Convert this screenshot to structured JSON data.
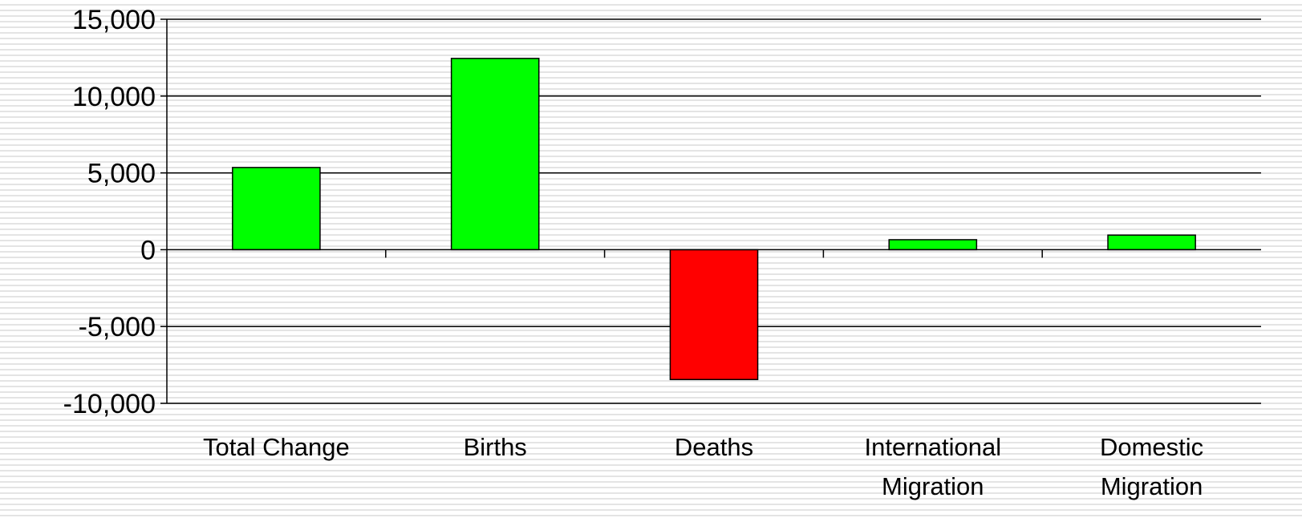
{
  "chart_data": {
    "type": "bar",
    "title": "",
    "xlabel": "",
    "ylabel": "",
    "categories": [
      "Total Change",
      "Births",
      "Deaths",
      "International Migration",
      "Domestic Migration"
    ],
    "category_label_lines": [
      [
        "Total Change"
      ],
      [
        "Births"
      ],
      [
        "Deaths"
      ],
      [
        "International",
        "Migration"
      ],
      [
        "Domestic",
        "Migration"
      ]
    ],
    "values": [
      5350,
      12450,
      -8450,
      650,
      950
    ],
    "ylim": [
      -10000,
      15000
    ],
    "yticks": [
      15000,
      10000,
      5000,
      0,
      -5000,
      -10000
    ],
    "ytick_labels": [
      "15,000",
      "10,000",
      "5,000",
      "0",
      "-5,000",
      "-10,000"
    ],
    "grid": true,
    "legend": "none",
    "colors": {
      "positive": "#00ff00",
      "negative": "#ff0000",
      "outline": "#000000",
      "gridline": "#000000"
    }
  }
}
